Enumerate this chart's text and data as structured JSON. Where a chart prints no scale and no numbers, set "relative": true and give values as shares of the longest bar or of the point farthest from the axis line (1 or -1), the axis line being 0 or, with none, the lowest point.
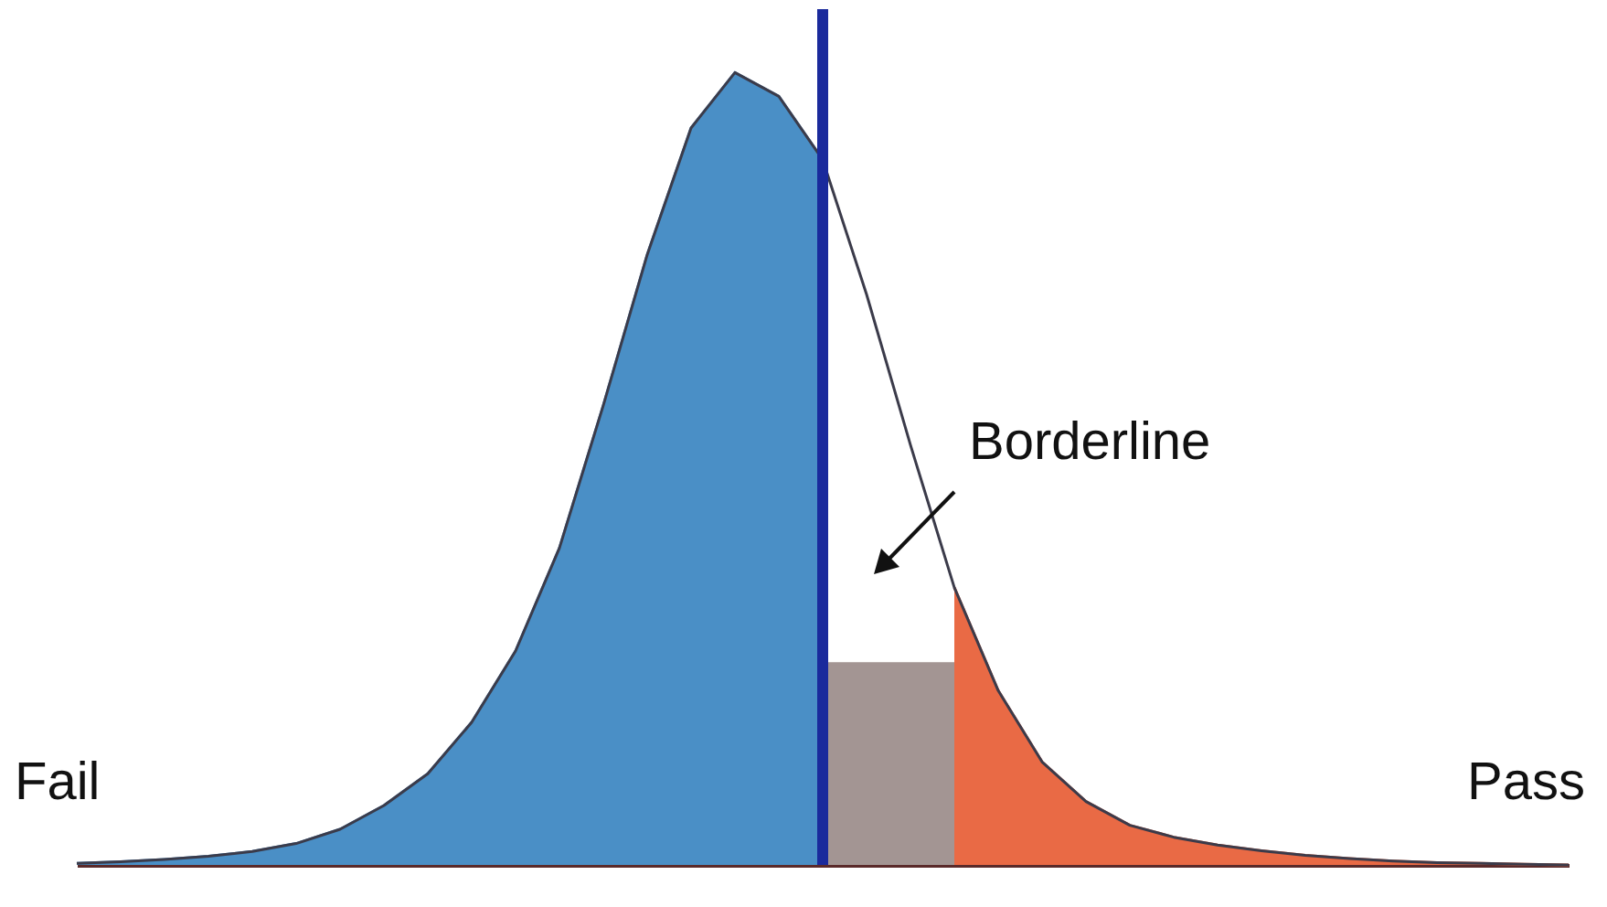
{
  "chart_data": {
    "type": "area",
    "relative": true,
    "categories": [
      null,
      null,
      null,
      null,
      null,
      null,
      null,
      null,
      null,
      null,
      null,
      null,
      null,
      null,
      null,
      null,
      null,
      null,
      null,
      null,
      null,
      null,
      null,
      null,
      null,
      null,
      null,
      null,
      null,
      null,
      null,
      null,
      null,
      null,
      null
    ],
    "series": [
      {
        "type": "area",
        "color": "#4a8fc6",
        "values": [
          0.002,
          0.004,
          0.007,
          0.011,
          0.017,
          0.027,
          0.045,
          0.075,
          0.115,
          0.18,
          0.27,
          0.4,
          0.58,
          0.77,
          0.93,
          1.0,
          0.97,
          0.89,
          null,
          null,
          null,
          null,
          null,
          null,
          null,
          null,
          null,
          null,
          null,
          null,
          null,
          null,
          null,
          null,
          null
        ]
      },
      {
        "type": "area",
        "color": "#a39593",
        "values": [
          null,
          null,
          null,
          null,
          null,
          null,
          null,
          null,
          null,
          null,
          null,
          null,
          null,
          null,
          null,
          null,
          null,
          0.254,
          0.254,
          0.254,
          0.254,
          null,
          null,
          null,
          null,
          null,
          null,
          null,
          null,
          null,
          null,
          null,
          null,
          null,
          null
        ]
      },
      {
        "type": "area",
        "color": "#e96a45",
        "values": [
          null,
          null,
          null,
          null,
          null,
          null,
          null,
          null,
          null,
          null,
          null,
          null,
          null,
          null,
          null,
          null,
          null,
          null,
          null,
          null,
          0.35,
          0.22,
          0.13,
          0.08,
          0.05,
          0.035,
          0.025,
          0.018,
          0.012,
          0.008,
          0.005,
          0.003,
          0.002,
          0.001,
          0
        ]
      },
      {
        "type": "line",
        "color": "#3b3b4a",
        "values": [
          0.002,
          0.004,
          0.007,
          0.011,
          0.017,
          0.027,
          0.045,
          0.075,
          0.115,
          0.18,
          0.27,
          0.4,
          0.58,
          0.77,
          0.93,
          1.0,
          0.97,
          0.89,
          0.72,
          0.53,
          0.35,
          0.22,
          0.13,
          0.08,
          0.05,
          0.035,
          0.025,
          0.018,
          0.012,
          0.008,
          0.005,
          0.003,
          0.002,
          0.001,
          0
        ]
      }
    ],
    "annotations": [
      "Fail",
      "Pass",
      "Borderline"
    ]
  }
}
